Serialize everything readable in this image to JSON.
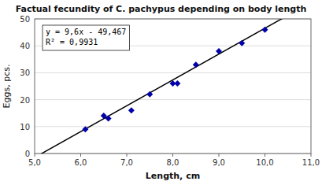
{
  "chart_data": {
    "type": "scatter",
    "title": "Factual fecundity of C. pachypus depending on body length",
    "xlabel": "Length, cm",
    "ylabel": "Eggs, pcs.",
    "xlim": [
      5.0,
      11.0
    ],
    "ylim": [
      0,
      50
    ],
    "xticks": [
      {
        "value": 5.0,
        "label": "5,0"
      },
      {
        "value": 6.0,
        "label": "6,0"
      },
      {
        "value": 7.0,
        "label": "7,0"
      },
      {
        "value": 8.0,
        "label": "8,0"
      },
      {
        "value": 9.0,
        "label": "9,0"
      },
      {
        "value": 10.0,
        "label": "10,0"
      },
      {
        "value": 11.0,
        "label": "11,0"
      }
    ],
    "yticks": [
      0,
      10,
      20,
      30,
      40,
      50
    ],
    "x": [
      6.1,
      6.5,
      6.6,
      7.1,
      7.5,
      8.0,
      8.1,
      8.5,
      9.0,
      9.5,
      10.0
    ],
    "values": [
      9,
      14,
      13,
      16,
      22,
      26,
      26,
      33,
      38,
      41,
      46
    ],
    "color": "#0000AA",
    "marker": "diamond",
    "trendline": {
      "slope": 9.6,
      "intercept": -49.467,
      "color": "black"
    },
    "annotations": [
      "y = 9,6x - 49,467",
      "R² = 0,9931"
    ],
    "grid": true
  }
}
